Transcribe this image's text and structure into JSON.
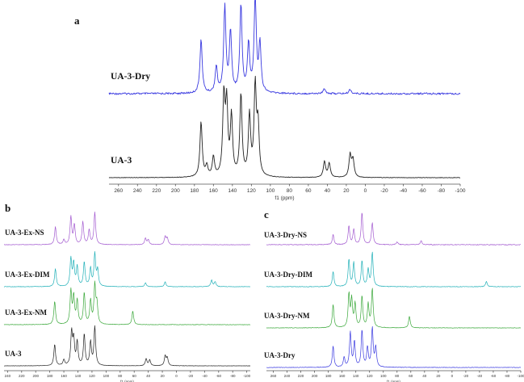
{
  "chart_data": [
    {
      "panel": "a",
      "type": "line",
      "xlabel": "f1 (ppm)",
      "x_reversed": true,
      "xlim": [
        270,
        -100
      ],
      "xticks": [
        260,
        240,
        220,
        200,
        180,
        160,
        140,
        120,
        100,
        80,
        60,
        40,
        20,
        0,
        -20,
        -40,
        -60,
        -80,
        -100
      ],
      "series": [
        {
          "name": "UA-3-Dry",
          "color": "#3a3ae0",
          "peaks": [
            [
              173,
              0.62
            ],
            [
              157,
              0.3
            ],
            [
              148,
              0.98
            ],
            [
              142,
              0.7
            ],
            [
              131,
              1.0
            ],
            [
              123,
              0.55
            ],
            [
              116,
              1.08
            ],
            [
              111,
              0.55
            ],
            [
              43,
              0.06
            ],
            [
              16,
              0.05
            ]
          ]
        },
        {
          "name": "UA-3",
          "color": "#222222",
          "peaks": [
            [
              173,
              0.62
            ],
            [
              167,
              0.12
            ],
            [
              160,
              0.22
            ],
            [
              149,
              0.88
            ],
            [
              146,
              0.78
            ],
            [
              141,
              0.66
            ],
            [
              131,
              0.92
            ],
            [
              122,
              0.68
            ],
            [
              116,
              1.0
            ],
            [
              113,
              0.55
            ],
            [
              43,
              0.18
            ],
            [
              38,
              0.16
            ],
            [
              16,
              0.25
            ],
            [
              13,
              0.2
            ]
          ]
        }
      ]
    },
    {
      "panel": "b",
      "type": "line",
      "xlabel": "f1 (ppm)",
      "x_reversed": true,
      "xlim": [
        245,
        -105
      ],
      "xticks": [
        240,
        220,
        200,
        180,
        160,
        140,
        120,
        100,
        80,
        60,
        40,
        20,
        0,
        -20,
        -40,
        -60,
        -80,
        -100
      ],
      "series": [
        {
          "name": "UA-3-Ex-NS",
          "color": "#a35ad0",
          "peaks": [
            [
              172,
              0.55
            ],
            [
              160,
              0.15
            ],
            [
              150,
              0.85
            ],
            [
              145,
              0.6
            ],
            [
              133,
              0.7
            ],
            [
              124,
              0.45
            ],
            [
              116,
              1.0
            ],
            [
              44,
              0.2
            ],
            [
              40,
              0.15
            ],
            [
              16,
              0.25
            ],
            [
              13,
              0.2
            ]
          ]
        },
        {
          "name": "UA-3-Ex-DIM",
          "color": "#20b0b8",
          "peaks": [
            [
              172,
              0.55
            ],
            [
              150,
              0.85
            ],
            [
              146,
              0.7
            ],
            [
              141,
              0.6
            ],
            [
              131,
              0.75
            ],
            [
              122,
              0.55
            ],
            [
              116,
              1.0
            ],
            [
              112,
              0.5
            ],
            [
              44,
              0.12
            ],
            [
              16,
              0.15
            ],
            [
              -50,
              0.2
            ],
            [
              -55,
              0.15
            ]
          ]
        },
        {
          "name": "UA-3-Ex-NM",
          "color": "#3aa83a",
          "peaks": [
            [
              173,
              0.6
            ],
            [
              150,
              0.85
            ],
            [
              146,
              0.7
            ],
            [
              141,
              0.6
            ],
            [
              131,
              0.8
            ],
            [
              122,
              0.6
            ],
            [
              116,
              1.0
            ],
            [
              113,
              0.5
            ],
            [
              62,
              0.35
            ]
          ]
        },
        {
          "name": "UA-3",
          "color": "#222222",
          "peaks": [
            [
              173,
              0.55
            ],
            [
              160,
              0.15
            ],
            [
              149,
              0.85
            ],
            [
              146,
              0.65
            ],
            [
              141,
              0.6
            ],
            [
              131,
              0.8
            ],
            [
              122,
              0.6
            ],
            [
              116,
              1.0
            ],
            [
              43,
              0.18
            ],
            [
              38,
              0.15
            ],
            [
              16,
              0.25
            ],
            [
              13,
              0.2
            ]
          ]
        }
      ]
    },
    {
      "panel": "c",
      "type": "line",
      "xlabel": "f1 (ppm)",
      "x_reversed": true,
      "xlim": [
        270,
        -100
      ],
      "xticks": [
        260,
        240,
        220,
        200,
        180,
        160,
        140,
        120,
        100,
        80,
        60,
        40,
        20,
        0,
        -20,
        -40,
        -60,
        -80,
        -100
      ],
      "series": [
        {
          "name": "UA-3-Dry-NS",
          "color": "#a35ad0",
          "peaks": [
            [
              173,
              0.3
            ],
            [
              150,
              0.55
            ],
            [
              143,
              0.45
            ],
            [
              131,
              0.95
            ],
            [
              116,
              0.65
            ],
            [
              80,
              0.08
            ],
            [
              45,
              0.12
            ]
          ]
        },
        {
          "name": "UA-3-Dry-DIM",
          "color": "#20b0b8",
          "peaks": [
            [
              173,
              0.45
            ],
            [
              150,
              0.8
            ],
            [
              143,
              0.7
            ],
            [
              131,
              0.75
            ],
            [
              122,
              0.5
            ],
            [
              116,
              1.0
            ],
            [
              -50,
              0.15
            ]
          ]
        },
        {
          "name": "UA-3-Dry-NM",
          "color": "#3aa83a",
          "peaks": [
            [
              173,
              0.6
            ],
            [
              150,
              0.85
            ],
            [
              146,
              0.7
            ],
            [
              141,
              0.6
            ],
            [
              131,
              0.8
            ],
            [
              122,
              0.6
            ],
            [
              116,
              1.0
            ],
            [
              62,
              0.3
            ]
          ]
        },
        {
          "name": "UA-3-Dry",
          "color": "#3a3ae0",
          "peaks": [
            [
              173,
              0.55
            ],
            [
              157,
              0.25
            ],
            [
              148,
              0.9
            ],
            [
              142,
              0.65
            ],
            [
              131,
              0.95
            ],
            [
              123,
              0.5
            ],
            [
              116,
              1.0
            ],
            [
              111,
              0.5
            ]
          ]
        }
      ]
    }
  ]
}
